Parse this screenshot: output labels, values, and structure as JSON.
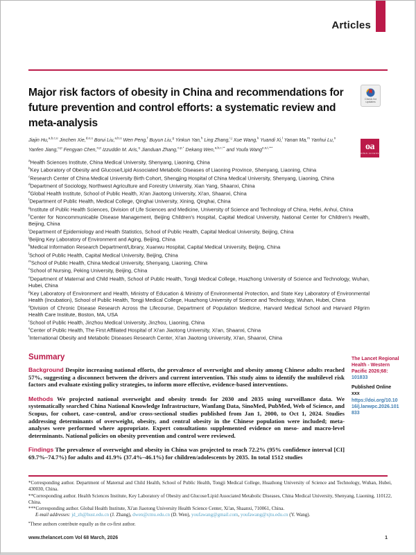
{
  "colors": {
    "accent": "#bb1a49",
    "link": "#3e7cb0",
    "email": "#56a3c7",
    "text": "#1a1a1a"
  },
  "header": {
    "section_label": "Articles"
  },
  "title": "Major risk factors of obesity in China and recommendations for future prevention and control efforts: a systematic review and meta-analysis",
  "authors": [
    {
      "name": "Jiajin Hu,",
      "sup": "a,b,c,u"
    },
    {
      "name": "Jinchen Xie,",
      "sup": "d,e,u"
    },
    {
      "name": "Borui Liu,",
      "sup": "a,b,u"
    },
    {
      "name": "Wen Peng,",
      "sup": "f"
    },
    {
      "name": "Buyun Liu,",
      "sup": "g"
    },
    {
      "name": "Yinkun Yan,",
      "sup": "h"
    },
    {
      "name": "Ling Zhang,",
      "sup": "i,j"
    },
    {
      "name": "Xue Wang,",
      "sup": "k"
    },
    {
      "name": "Yuandi Xi,",
      "sup": "l"
    },
    {
      "name": "Yanan Ma,",
      "sup": "m"
    },
    {
      "name": "Yanhui Lu,",
      "sup": "n"
    },
    {
      "name": "Yanfen Jiang,",
      "sup": "o,p"
    },
    {
      "name": "Fengyan Chen,",
      "sup": "o,p"
    },
    {
      "name": "Izzuddin M. Aris,",
      "sup": "q"
    },
    {
      "name": "Jianduan Zhang,",
      "sup": "o,p,*"
    },
    {
      "name": "Dekang Wen,",
      "sup": "a,b,c,**"
    },
    {
      "name": "and Youfa Wang",
      "sup": "e,s,t,***"
    }
  ],
  "affiliations": [
    {
      "sup": "a",
      "text": "Health Sciences Institute, China Medical University, Shenyang, Liaoning, China"
    },
    {
      "sup": "b",
      "text": "Key Laboratory of Obesity and Glucose/Lipid Associated Metabolic Diseases of Liaoning Province, Shenyang, Liaoning, China"
    },
    {
      "sup": "c",
      "text": "Research Center of China Medical University Birth Cohort, Shengjing Hospital of China Medical University, Shenyang, Liaoning, China"
    },
    {
      "sup": "d",
      "text": "Department of Sociology, Northwest Agriculture and Forestry University, Xian Yang, Shaanxi, China"
    },
    {
      "sup": "e",
      "text": "Global Health Institute, School of Public Health, Xi'an Jiaotong University, Xi'an, Shaanxi, China"
    },
    {
      "sup": "f",
      "text": "Department of Public Health, Medical College, Qinghai University, Xining, Qinghai, China"
    },
    {
      "sup": "g",
      "text": "Institute of Public Health Sciences, Division of Life Sciences and Medicine, University of Science and Technology of China, Hefei, Anhui, China"
    },
    {
      "sup": "h",
      "text": "Center for Noncommunicable Disease Management, Beijing Children's Hospital, Capital Medical University, National Center for Children's Health, Beijing, China"
    },
    {
      "sup": "i",
      "text": "Department of Epidemiology and Health Statistics, School of Public Health, Capital Medical University, Beijing, China"
    },
    {
      "sup": "j",
      "text": "Beijing Key Laboratory of Environment and Aging, Beijing, China"
    },
    {
      "sup": "k",
      "text": "Medical Information Research Department/Library, Xuanwu Hospital, Capital Medical University, Beijing, China"
    },
    {
      "sup": "l",
      "text": "School of Public Health, Capital Medical University, Beijing, China"
    },
    {
      "sup": "m",
      "text": "School of Public Health, China Medical University, Shenyang, Liaoning, China"
    },
    {
      "sup": "n",
      "text": "School of Nursing, Peking University, Beijing, China"
    },
    {
      "sup": "o",
      "text": "Department of Maternal and Child Health, School of Public Health, Tongji Medical College, Huazhong University of Science and Technology, Wuhan, Hubei, China"
    },
    {
      "sup": "p",
      "text": "Key Laboratory of Environment and Health, Ministry of Education & Ministry of Environmental Protection, and State Key Laboratory of Environmental Health (Incubation), School of Public Health, Tongji Medical College, Huazhong University of Science and Technology, Wuhan, Hubei, China"
    },
    {
      "sup": "q",
      "text": "Division of Chronic Disease Research Across the Lifecourse, Department of Population Medicine, Harvard Medical School and Harvard Pilgrim Health Care Institute, Boston, MA, USA"
    },
    {
      "sup": "r",
      "text": "School of Public Health, Jinzhou Medical University, Jinzhou, Liaoning, China"
    },
    {
      "sup": "s",
      "text": "Center of Public Health, The First Affiliated Hospital of Xi'an Jiaotong University, Xi'an, Shaanxi, China"
    },
    {
      "sup": "t",
      "text": "International Obesity and Metabolic Diseases Research Center, Xi'an Jiaotong University, Xi'an, Shaanxi, China"
    }
  ],
  "summary": {
    "heading": "Summary",
    "sections": [
      {
        "label": "Background",
        "text": "Despite increasing national efforts, the prevalence of overweight and obesity among Chinese adults reached 57%, suggesting a disconnect between the drivers and current intervention. This study aims to identify the multilevel risk factors and evaluate existing policy strategies, to inform more effective, evidence-based interventions."
      },
      {
        "label": "Methods",
        "text": "We projected national overweight and obesity trends for 2030 and 2035 using surveillance data. We systematically searched China National Knowledge Infrastructure, Wanfang Data, SinoMed, PubMed, Web of Science, and Scopus, for cohort, case–control, and/or cross-sectional studies published from Jan 1, 2000, to Oct 1, 2024. Studies addressing determinants of overweight, obesity, and central obesity in the Chinese population were included; meta-analyses were performed where appropriate. Expert consultations supplemented evidence on meso- and macro-level determinants. National policies on obesity prevention and control were reviewed."
      },
      {
        "label": "Findings",
        "text": "The prevalence of overweight and obesity in China was projected to reach 72.2% (95% confidence interval [CI] 69.7%–74.7%) for adults and 41.9% (37.4%–46.1%) for children/adolescents by 2035. In total 1512 studies"
      }
    ]
  },
  "sidebar": {
    "citation_text": "The Lancet Regional Health - Western Pacific 2026;68: ",
    "citation_link": "101833",
    "published": "Published Online xxx",
    "doi": "https://doi.org/10.1016/j.lanwpc.2026.101833"
  },
  "badges": {
    "check_line1": "Check for",
    "check_line2": "updates",
    "oa": "oa",
    "oa_sub": "OPEN ACCESS"
  },
  "footnotes": [
    {
      "segments": [
        {
          "t": "*Corresponding author. Department of Maternal and Child Health, School of Public Health, Tongji Medical College, Huazhong University of Science and Technology, Wuhan, Hubei, 430030, China.",
          "s": "plain"
        }
      ]
    },
    {
      "segments": [
        {
          "t": "**Corresponding author. Health Sciences Institute, Key Laboratory of Obesity and Glucose/Lipid Associated Metabolic Diseases, China Medical University, Shenyang, Liaoning, 110122, China.",
          "s": "plain"
        }
      ]
    },
    {
      "segments": [
        {
          "t": "***Corresponding author. Global Health Institute, Xi'an Jiaotong University Health Science Center, Xi'an, Shaanxi, 710061, China.",
          "s": "plain"
        }
      ]
    },
    {
      "indent": true,
      "segments": [
        {
          "t": "E-mail addresses: ",
          "s": "italic"
        },
        {
          "t": "jd_zh@hust.edu.cn",
          "s": "link"
        },
        {
          "t": " (J. Zhang), ",
          "s": "plain"
        },
        {
          "t": "dwen@cmu.edu.cn",
          "s": "link"
        },
        {
          "t": " (D. Wen), ",
          "s": "plain"
        },
        {
          "t": "youfawang@gmail.com",
          "s": "link"
        },
        {
          "t": ", ",
          "s": "plain"
        },
        {
          "t": "youfawang@xjtu.edu.cn",
          "s": "link"
        },
        {
          "t": " (Y. Wang).",
          "s": "plain"
        }
      ]
    },
    {
      "segments": [
        {
          "t": "u",
          "s": "sup"
        },
        {
          "t": "These authors contribute equally as the co-first author.",
          "s": "plain"
        }
      ]
    }
  ],
  "footer": {
    "left": "www.thelancet.com Vol 68 March, 2026",
    "page_number": "1"
  }
}
